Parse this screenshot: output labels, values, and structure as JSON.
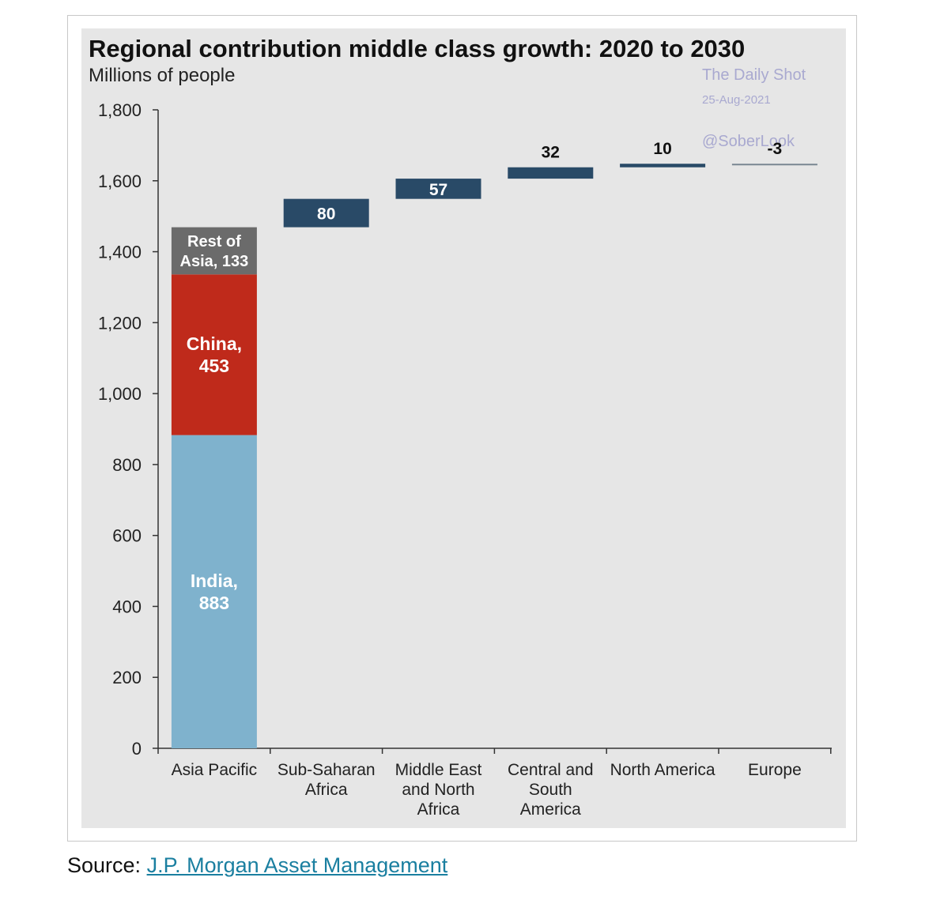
{
  "title": "Regional contribution middle class growth: 2020 to 2030",
  "subtitle": "Millions of people",
  "watermark": {
    "line1": "The Daily Shot",
    "date": "25-Aug-2021",
    "handle": "@SoberLook"
  },
  "source": {
    "prefix": "Source:",
    "link_text": "J.P. Morgan Asset Management"
  },
  "colors": {
    "india": "#7fb2cd",
    "china": "#bf2a1b",
    "rest_of_asia": "#6b6b6b",
    "region_bar": "#294a67",
    "panel_bg": "#e6e6e6",
    "link": "#1a7fa0"
  },
  "chart_data": {
    "type": "bar",
    "subtype": "waterfall",
    "categories": [
      "Asia Pacific",
      "Sub-Saharan Africa",
      "Middle East and North Africa",
      "Central and South America",
      "North America",
      "Europe"
    ],
    "category_lines": [
      [
        "Asia Pacific"
      ],
      [
        "Sub-Saharan",
        "Africa"
      ],
      [
        "Middle East",
        "and North",
        "Africa"
      ],
      [
        "Central and",
        "South",
        "America"
      ],
      [
        "North America"
      ],
      [
        "Europe"
      ]
    ],
    "ylim": [
      0,
      1800
    ],
    "yticks": [
      0,
      200,
      400,
      600,
      800,
      1000,
      1200,
      1400,
      1600,
      1800
    ],
    "ytick_labels": [
      "0",
      "200",
      "400",
      "600",
      "800",
      "1,000",
      "1,200",
      "1,400",
      "1,600",
      "1,800"
    ],
    "stacked_first": [
      {
        "name": "India",
        "value": 883,
        "label_lines": [
          "India,",
          "883"
        ]
      },
      {
        "name": "China",
        "value": 453,
        "label_lines": [
          "China,",
          "453"
        ]
      },
      {
        "name": "Rest of Asia",
        "value": 133,
        "label_lines": [
          "Rest of",
          "Asia, 133"
        ]
      }
    ],
    "increments": [
      {
        "category": "Sub-Saharan Africa",
        "value": 80,
        "label": "80"
      },
      {
        "category": "Middle East and North Africa",
        "value": 57,
        "label": "57"
      },
      {
        "category": "Central and South America",
        "value": 32,
        "label": "32"
      },
      {
        "category": "North America",
        "value": 10,
        "label": "10"
      },
      {
        "category": "Europe",
        "value": -3,
        "label": "-3"
      }
    ]
  }
}
